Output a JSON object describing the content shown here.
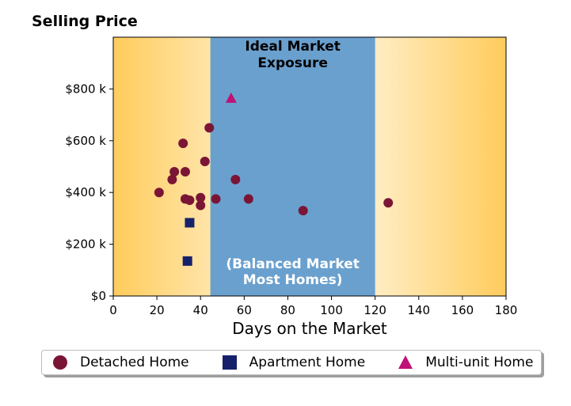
{
  "title": "Selling Price",
  "chart_data": {
    "type": "scatter",
    "title": "Selling Price",
    "xlabel": "Days on the Market",
    "ylabel": "",
    "xlim": [
      0,
      180
    ],
    "ylim": [
      0,
      1000
    ],
    "x_ticks": [
      0,
      20,
      40,
      60,
      80,
      100,
      120,
      140,
      160,
      180
    ],
    "y_ticks": [
      0,
      200,
      400,
      600,
      800
    ],
    "y_tick_labels": [
      "$0",
      "$200 k",
      "$400 k",
      "$600 k",
      "$800 k"
    ],
    "band": {
      "x_start": 44.5,
      "x_end": 120,
      "title_lines": [
        "Ideal Market",
        "Exposure"
      ],
      "subtitle_lines": [
        "(Balanced Market",
        "Most Homes)"
      ],
      "color": "#6aa0ce"
    },
    "background_gradient": {
      "edge_color": "#ffcc5c",
      "center_color": "#fffdf7"
    },
    "grid": false,
    "legend_position": "bottom",
    "series": [
      {
        "name": "Detached Home",
        "marker": "circle",
        "color": "#7b1535",
        "points": [
          [
            21,
            400
          ],
          [
            27,
            450
          ],
          [
            28,
            480
          ],
          [
            32,
            590
          ],
          [
            33,
            480
          ],
          [
            33,
            375
          ],
          [
            35,
            370
          ],
          [
            40,
            350
          ],
          [
            40,
            380
          ],
          [
            42,
            520
          ],
          [
            44,
            650
          ],
          [
            47,
            375
          ],
          [
            56,
            450
          ],
          [
            62,
            375
          ],
          [
            87,
            330
          ],
          [
            126,
            360
          ]
        ]
      },
      {
        "name": "Apartment Home",
        "marker": "square",
        "color": "#15216b",
        "points": [
          [
            35,
            283
          ],
          [
            34,
            135
          ]
        ]
      },
      {
        "name": "Multi-unit Home",
        "marker": "triangle",
        "color": "#bf1276",
        "points": [
          [
            54,
            765
          ]
        ]
      }
    ]
  }
}
